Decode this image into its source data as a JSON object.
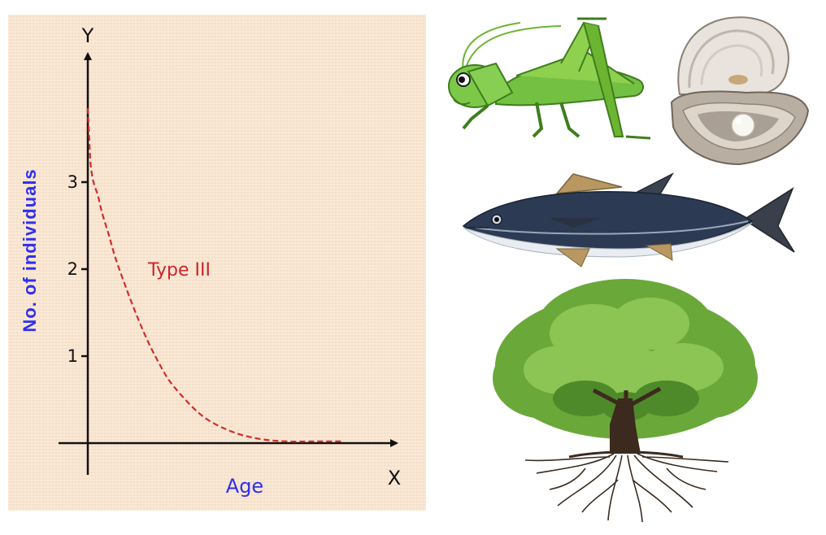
{
  "chart_data": {
    "type": "line",
    "title": "",
    "xlabel": "Age",
    "ylabel": "No. of individuals",
    "x_axis_letter": "X",
    "y_axis_letter": "Y",
    "yticks": [
      "1",
      "2",
      "3"
    ],
    "xticks": [],
    "ylim": [
      0,
      4
    ],
    "xlim": [
      0,
      10
    ],
    "grid": false,
    "legend": "none",
    "annotations": [
      {
        "text": "Type III",
        "x": 2.6,
        "y": 2
      }
    ],
    "series": [
      {
        "name": "",
        "style": "dashed",
        "color": "#d22b2b",
        "x": [
          0,
          0.05,
          0.1,
          0.2,
          0.35,
          0.5,
          0.75,
          1,
          1.5,
          2,
          2.5,
          3,
          4,
          5,
          6,
          7,
          8,
          9
        ],
        "y": [
          3.85,
          3.5,
          3.2,
          3.0,
          2.85,
          2.65,
          2.38,
          2.1,
          1.65,
          1.25,
          0.92,
          0.66,
          0.32,
          0.14,
          0.05,
          0.02,
          0.02,
          0.02
        ]
      }
    ]
  },
  "illustrations": [
    "grasshopper",
    "pearl-oyster",
    "tuna-fish",
    "tree"
  ]
}
